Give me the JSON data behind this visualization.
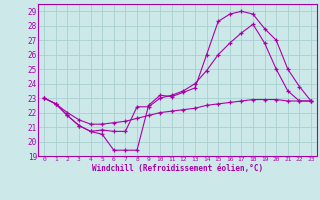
{
  "xlabel": "Windchill (Refroidissement éolien,°C)",
  "xlim": [
    -0.5,
    23.5
  ],
  "ylim": [
    19,
    29.5
  ],
  "yticks": [
    19,
    20,
    21,
    22,
    23,
    24,
    25,
    26,
    27,
    28,
    29
  ],
  "xticks": [
    0,
    1,
    2,
    3,
    4,
    5,
    6,
    7,
    8,
    9,
    10,
    11,
    12,
    13,
    14,
    15,
    16,
    17,
    18,
    19,
    20,
    21,
    22,
    23
  ],
  "background_color": "#cce8e8",
  "grid_color": "#a8d0d0",
  "line_color": "#aa00aa",
  "line1_x": [
    0,
    1,
    2,
    3,
    4,
    5,
    6,
    7,
    8,
    9,
    10,
    11,
    12,
    13,
    14,
    15,
    16,
    17,
    18,
    19,
    20,
    21,
    22,
    23
  ],
  "line1_y": [
    23.0,
    22.6,
    21.8,
    21.1,
    20.7,
    20.5,
    19.4,
    19.4,
    19.4,
    22.5,
    23.2,
    23.1,
    23.4,
    23.7,
    26.0,
    28.3,
    28.8,
    29.0,
    28.8,
    27.8,
    27.0,
    25.0,
    23.8,
    22.8
  ],
  "line2_x": [
    0,
    1,
    2,
    3,
    4,
    5,
    6,
    7,
    8,
    9,
    10,
    11,
    12,
    13,
    14,
    15,
    16,
    17,
    18,
    19,
    20,
    21,
    22,
    23
  ],
  "line2_y": [
    23.0,
    22.6,
    21.8,
    21.1,
    20.7,
    20.8,
    20.7,
    20.7,
    22.4,
    22.4,
    23.0,
    23.2,
    23.5,
    24.0,
    24.9,
    26.0,
    26.8,
    27.5,
    28.1,
    26.8,
    25.0,
    23.5,
    22.8,
    22.8
  ],
  "line3_x": [
    0,
    1,
    2,
    3,
    4,
    5,
    6,
    7,
    8,
    9,
    10,
    11,
    12,
    13,
    14,
    15,
    16,
    17,
    18,
    19,
    20,
    21,
    22,
    23
  ],
  "line3_y": [
    23.0,
    22.6,
    22.0,
    21.5,
    21.2,
    21.2,
    21.3,
    21.4,
    21.6,
    21.8,
    22.0,
    22.1,
    22.2,
    22.3,
    22.5,
    22.6,
    22.7,
    22.8,
    22.9,
    22.9,
    22.9,
    22.8,
    22.8,
    22.8
  ]
}
